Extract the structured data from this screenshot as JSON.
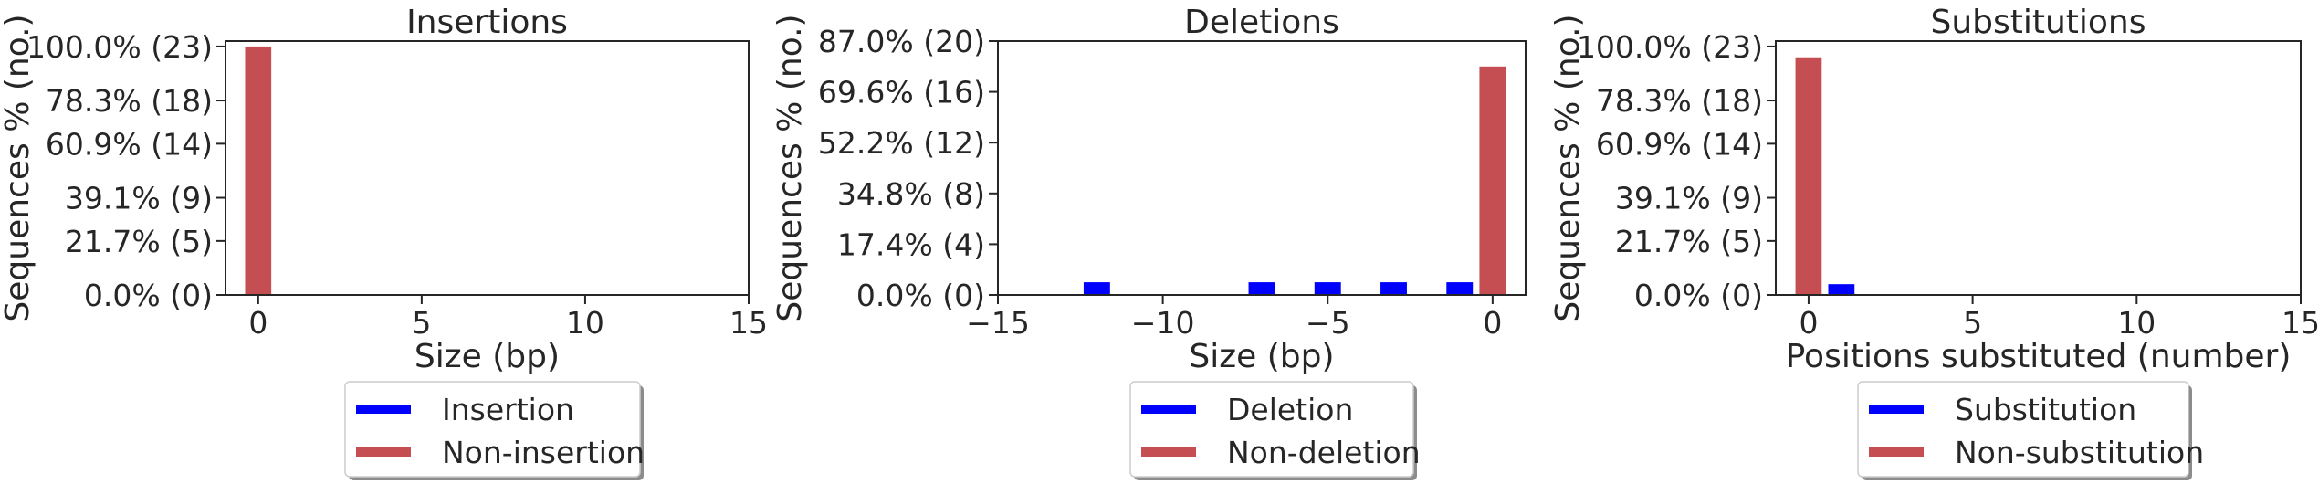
{
  "colors": {
    "modified": "#0000ff",
    "unmodified": "#c44e52",
    "axis": "#262626"
  },
  "chart_data": [
    {
      "type": "bar",
      "title": "Insertions",
      "xlabel": "Size (bp)",
      "ylabel": "Sequences % (no.)",
      "xlim": [
        -1,
        15
      ],
      "ylim": [
        0,
        23.5
      ],
      "xticks": [
        0,
        5,
        10,
        15
      ],
      "xtick_labels": [
        "0",
        "5",
        "10",
        "15"
      ],
      "yticks": [
        0,
        5,
        9,
        14,
        18,
        23
      ],
      "ytick_labels": [
        "0.0% (0)",
        "21.7% (5)",
        "39.1% (9)",
        "60.9% (14)",
        "78.3% (18)",
        "100.0% (23)"
      ],
      "legend": [
        "Insertion",
        "Non-insertion"
      ],
      "legend_position": "below",
      "series": [
        {
          "name": "Insertion",
          "color_key": "modified",
          "x": [],
          "y": []
        },
        {
          "name": "Non-insertion",
          "color_key": "unmodified",
          "x": [
            0
          ],
          "y": [
            23
          ]
        }
      ]
    },
    {
      "type": "bar",
      "title": "Deletions",
      "xlabel": "Size (bp)",
      "ylabel": "Sequences % (no.)",
      "xlim": [
        -15,
        1
      ],
      "ylim": [
        0,
        20
      ],
      "xticks": [
        -15,
        -10,
        -5,
        0
      ],
      "xtick_labels": [
        "−15",
        "−10",
        "−5",
        "0"
      ],
      "yticks": [
        0,
        4,
        8,
        12,
        16,
        20
      ],
      "ytick_labels": [
        "0.0% (0)",
        "17.4% (4)",
        "34.8% (8)",
        "52.2% (12)",
        "69.6% (16)",
        "87.0% (20)"
      ],
      "legend": [
        "Deletion",
        "Non-deletion"
      ],
      "legend_position": "below",
      "series": [
        {
          "name": "Deletion",
          "color_key": "modified",
          "x": [
            -12,
            -7,
            -5,
            -3,
            -1
          ],
          "y": [
            1,
            1,
            1,
            1,
            1
          ]
        },
        {
          "name": "Non-deletion",
          "color_key": "unmodified",
          "x": [
            0
          ],
          "y": [
            18
          ]
        }
      ]
    },
    {
      "type": "bar",
      "title": "Substitutions",
      "xlabel": "Positions substituted (number)",
      "ylabel": "Sequences % (no.)",
      "xlim": [
        -1,
        15
      ],
      "ylim": [
        0,
        23.5
      ],
      "xticks": [
        0,
        5,
        10,
        15
      ],
      "xtick_labels": [
        "0",
        "5",
        "10",
        "15"
      ],
      "yticks": [
        0,
        5,
        9,
        14,
        18,
        23
      ],
      "ytick_labels": [
        "0.0% (0)",
        "21.7% (5)",
        "39.1% (9)",
        "60.9% (14)",
        "78.3% (18)",
        "100.0% (23)"
      ],
      "legend": [
        "Substitution",
        "Non-substitution"
      ],
      "legend_position": "below",
      "series": [
        {
          "name": "Substitution",
          "color_key": "modified",
          "x": [
            1
          ],
          "y": [
            1
          ]
        },
        {
          "name": "Non-substitution",
          "color_key": "unmodified",
          "x": [
            0
          ],
          "y": [
            22
          ]
        }
      ]
    }
  ]
}
